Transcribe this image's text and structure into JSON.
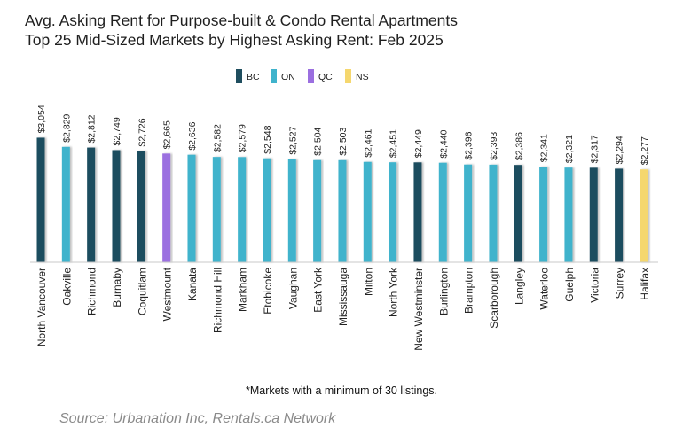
{
  "chart_data": {
    "type": "bar",
    "title": "Avg. Asking Rent for Purpose-built & Condo Rental Apartments",
    "subtitle": "Top 25 Mid-Sized Markets by Highest Asking Rent: Feb 2025",
    "categories": [
      "North Vancouver",
      "Oakville",
      "Richmond",
      "Burnaby",
      "Coquitlam",
      "Westmount",
      "Kanata",
      "Richmond Hill",
      "Markham",
      "Etobicoke",
      "Vaughan",
      "East York",
      "Mississauga",
      "Milton",
      "North York",
      "New Westminster",
      "Burlington",
      "Brampton",
      "Scarborough",
      "Langley",
      "Waterloo",
      "Guelph",
      "Victoria",
      "Surrey",
      "Halifax"
    ],
    "values": [
      3054,
      2829,
      2812,
      2749,
      2726,
      2665,
      2636,
      2582,
      2579,
      2548,
      2527,
      2504,
      2503,
      2461,
      2451,
      2449,
      2440,
      2396,
      2393,
      2386,
      2341,
      2321,
      2317,
      2294,
      2277
    ],
    "value_labels": [
      "$3,054",
      "$2,829",
      "$2,812",
      "$2,749",
      "$2,726",
      "$2,665",
      "$2,636",
      "$2,582",
      "$2,579",
      "$2,548",
      "$2,527",
      "$2,504",
      "$2,503",
      "$2,461",
      "$2,451",
      "$2,449",
      "$2,440",
      "$2,396",
      "$2,393",
      "$2,386",
      "$2,341",
      "$2,321",
      "$2,317",
      "$2,294",
      "$2,277"
    ],
    "regions": [
      "BC",
      "ON",
      "BC",
      "BC",
      "BC",
      "QC",
      "ON",
      "ON",
      "ON",
      "ON",
      "ON",
      "ON",
      "ON",
      "ON",
      "ON",
      "BC",
      "ON",
      "ON",
      "ON",
      "BC",
      "ON",
      "ON",
      "BC",
      "BC",
      "NS"
    ],
    "legend": [
      {
        "key": "BC",
        "label": "BC",
        "color": "#1f4e5f"
      },
      {
        "key": "ON",
        "label": "ON",
        "color": "#3fb3cc"
      },
      {
        "key": "QC",
        "label": "QC",
        "color": "#9b6fe0"
      },
      {
        "key": "NS",
        "label": "NS",
        "color": "#f5d76e"
      }
    ],
    "legend_position": "top-center",
    "ylim": [
      0,
      3150
    ],
    "xlabel": "",
    "ylabel": "",
    "grid": false
  },
  "footnote": "*Markets with a minimum of 30 listings.",
  "source": "Source: Urbanation Inc, Rentals.ca Network"
}
